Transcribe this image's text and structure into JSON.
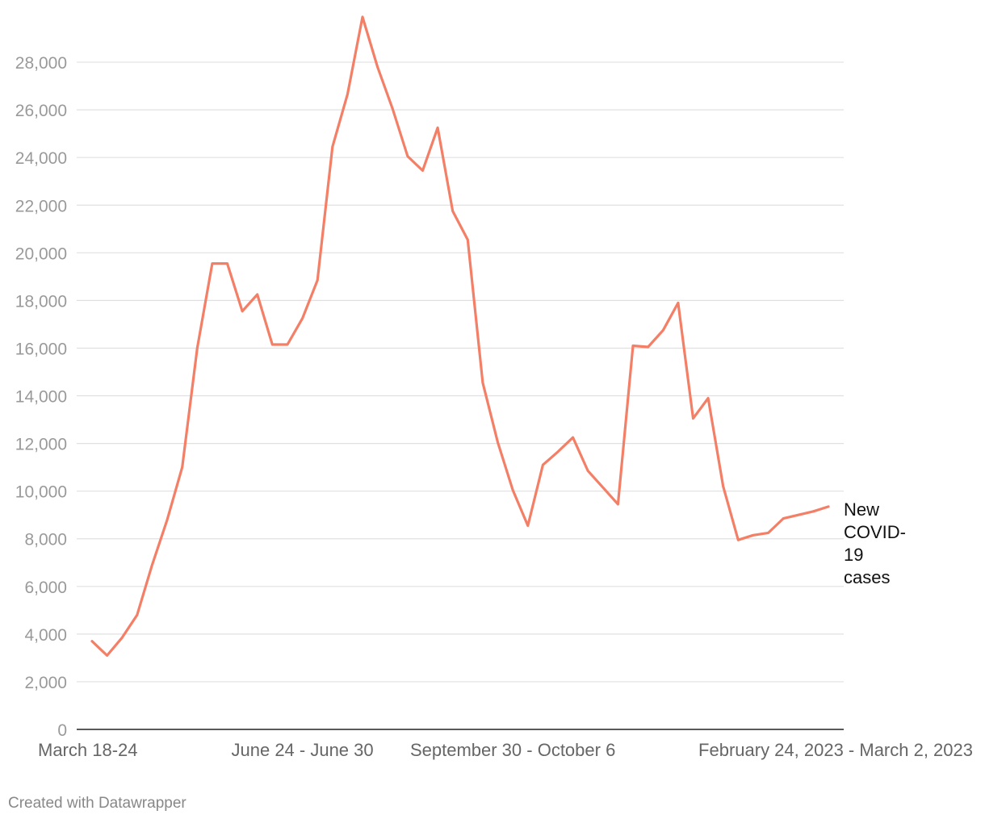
{
  "chart_data": {
    "type": "line",
    "title": "",
    "xlabel": "",
    "ylabel": "",
    "ylim": [
      0,
      30000
    ],
    "yticks": [
      0,
      2000,
      4000,
      6000,
      8000,
      10000,
      12000,
      14000,
      16000,
      18000,
      20000,
      22000,
      24000,
      26000,
      28000
    ],
    "ytick_labels": [
      "0",
      "2,000",
      "4,000",
      "6,000",
      "8,000",
      "10,000",
      "12,000",
      "14,000",
      "16,000",
      "18,000",
      "20,000",
      "22,000",
      "24,000",
      "26,000",
      "28,000"
    ],
    "grid": true,
    "xtick_labels": [
      {
        "label": "March 18-24",
        "index": 0
      },
      {
        "label": "June 24 - June 30",
        "index": 14
      },
      {
        "label": "September 30 - October 6",
        "index": 28
      },
      {
        "label": "February 24, 2023 - March 2, 2023",
        "index": 49
      }
    ],
    "series": [
      {
        "name": "New COVID-19 cases",
        "label_lines": [
          "New",
          "COVID-",
          "19",
          "cases"
        ],
        "color": "#f47f67",
        "values": [
          3700,
          3100,
          3850,
          4800,
          6900,
          8800,
          11000,
          16000,
          19550,
          19550,
          17550,
          18250,
          16150,
          16150,
          17250,
          18850,
          24450,
          26650,
          29900,
          27800,
          26050,
          24050,
          23450,
          25250,
          21750,
          20550,
          14550,
          12050,
          10050,
          8550,
          11100,
          11650,
          12250,
          10850,
          10150,
          9450,
          16100,
          16050,
          16750,
          17900,
          13050,
          13900,
          10200,
          7950,
          8150,
          8250,
          8850,
          9000,
          9150,
          9350
        ]
      }
    ]
  },
  "footer": {
    "credit": "Created with Datawrapper"
  }
}
